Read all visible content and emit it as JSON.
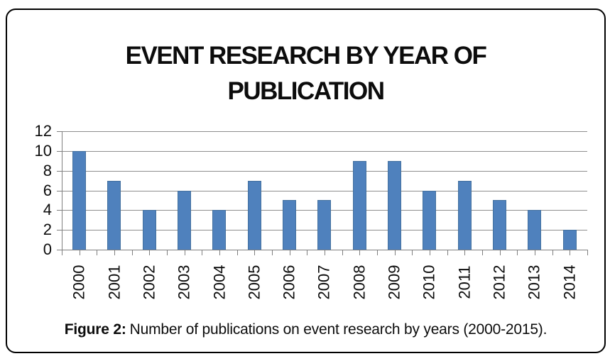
{
  "figure": {
    "title_lines": [
      "EVENT RESEARCH BY YEAR OF",
      "PUBLICATION"
    ],
    "caption": {
      "label": "Figure 2:",
      "text": "Number of publications on event research by years (2000-2015)."
    }
  },
  "chart_data": {
    "type": "bar",
    "title": "EVENT RESEARCH BY YEAR OF PUBLICATION",
    "categories": [
      "2000",
      "2001",
      "2002",
      "2003",
      "2004",
      "2005",
      "2006",
      "2007",
      "2008",
      "2009",
      "2010",
      "2011",
      "2012",
      "2013",
      "2014"
    ],
    "values": [
      10,
      7,
      4,
      6,
      4,
      7,
      5,
      5,
      9,
      9,
      6,
      7,
      5,
      4,
      2
    ],
    "xlabel": "",
    "ylabel": "",
    "ylim": [
      0,
      12
    ],
    "yticks": [
      0,
      2,
      4,
      6,
      8,
      10,
      12
    ],
    "grid": true,
    "legend": "none",
    "x_tick_divisions": 30,
    "bar_color": "#4F81BD",
    "bar_border_color": "#44719F",
    "gridline_color": "#8E8E8E",
    "axis_color": "#7F7F7F",
    "text_color": "#0c0c0c"
  }
}
